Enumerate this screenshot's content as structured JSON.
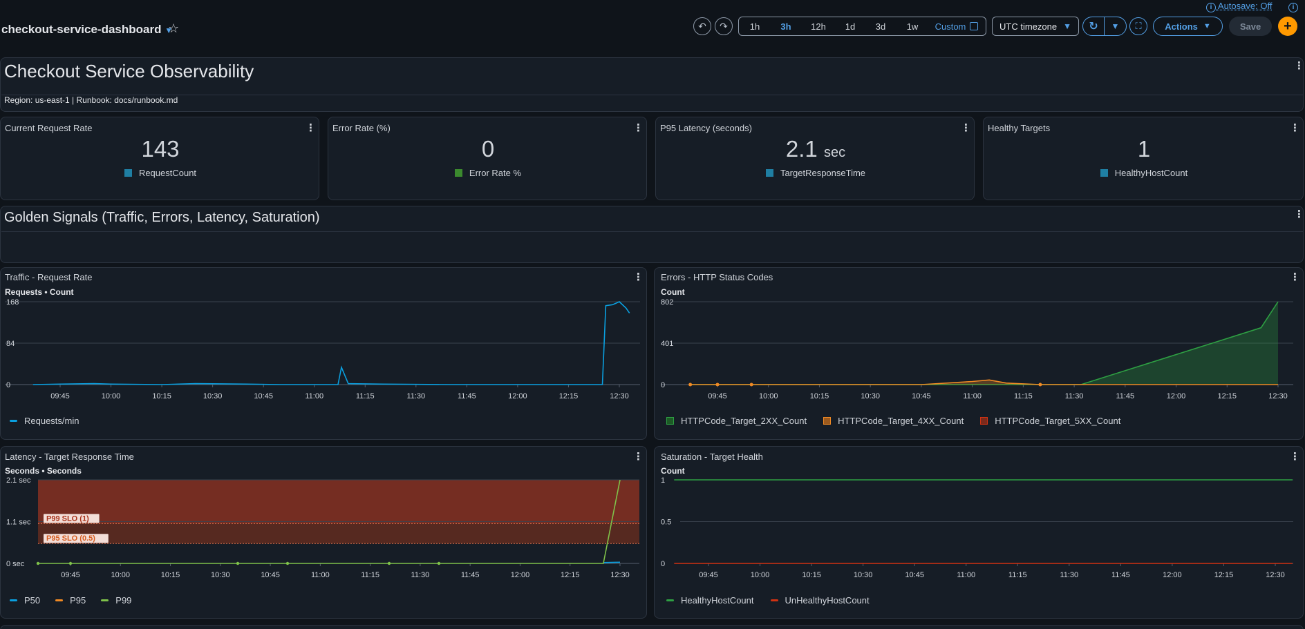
{
  "header": {
    "dashboard_name": "checkout-service-dashboard",
    "autosave": "Autosave: Off",
    "ranges": [
      "1h",
      "3h",
      "12h",
      "1d",
      "3d",
      "1w"
    ],
    "active_range": "3h",
    "custom_label": "Custom",
    "timezone": "UTC timezone",
    "actions_label": "Actions",
    "save_label": "Save"
  },
  "text_widget": {
    "title": "Checkout Service Observability",
    "subtitle": "Region: us-east-1 | Runbook: docs/runbook.md"
  },
  "stats": [
    {
      "title": "Current Request Rate",
      "value": "143",
      "unit": "",
      "legend": "RequestCount",
      "color": "#1f7fa3"
    },
    {
      "title": "Error Rate (%)",
      "value": "0",
      "unit": "",
      "legend": "Error Rate %",
      "color": "#3b8a2e"
    },
    {
      "title": "P95 Latency (seconds)",
      "value": "2.1",
      "unit": "sec",
      "legend": "TargetResponseTime",
      "color": "#1f7fa3"
    },
    {
      "title": "Healthy Targets",
      "value": "1",
      "unit": "",
      "legend": "HealthyHostCount",
      "color": "#1f7fa3"
    }
  ],
  "section": {
    "title": "Golden Signals (Traffic, Errors, Latency, Saturation)"
  },
  "charts": {
    "traffic": {
      "title": "Traffic - Request Rate",
      "subtitle": "Requests • Count",
      "legend": [
        "Requests/min"
      ]
    },
    "errors": {
      "title": "Errors - HTTP Status Codes",
      "subtitle": "Count",
      "legend": [
        "HTTPCode_Target_2XX_Count",
        "HTTPCode_Target_4XX_Count",
        "HTTPCode_Target_5XX_Count"
      ]
    },
    "latency": {
      "title": "Latency - Target Response Time",
      "subtitle": "Seconds • Seconds",
      "legend": [
        "P50",
        "P95",
        "P99"
      ],
      "annotations": [
        "P99 SLO (1)",
        "P95 SLO (0.5)"
      ]
    },
    "saturation": {
      "title": "Saturation - Target Health",
      "subtitle": "Count",
      "legend": [
        "HealthyHostCount",
        "UnHealthyHostCount"
      ]
    }
  },
  "chart_data": [
    {
      "type": "line",
      "title": "Traffic - Request Rate",
      "ylabel": "Requests • Count",
      "x_ticks": [
        "09:45",
        "10:00",
        "10:15",
        "10:30",
        "10:45",
        "11:00",
        "11:15",
        "11:30",
        "11:45",
        "12:00",
        "12:15",
        "12:30"
      ],
      "y_ticks": [
        "0",
        "84",
        "168"
      ],
      "ylim": [
        0,
        168
      ],
      "series": [
        {
          "name": "Requests/min",
          "color": "#0aa0e0",
          "x": [
            "09:37",
            "09:45",
            "09:55",
            "10:00",
            "10:15",
            "10:25",
            "10:40",
            "10:50",
            "11:00",
            "11:07",
            "11:08",
            "11:10",
            "11:20",
            "11:40",
            "12:00",
            "12:20",
            "12:25",
            "12:26",
            "12:28",
            "12:30",
            "12:32",
            "12:33"
          ],
          "values": [
            0,
            1,
            2,
            1,
            0,
            2,
            1,
            0,
            0,
            0,
            35,
            2,
            1,
            0,
            0,
            0,
            0,
            160,
            162,
            168,
            155,
            145
          ]
        }
      ]
    },
    {
      "type": "area",
      "title": "Errors - HTTP Status Codes",
      "ylabel": "Count",
      "x_ticks": [
        "09:45",
        "10:00",
        "10:15",
        "10:30",
        "10:45",
        "11:00",
        "11:15",
        "11:30",
        "11:45",
        "12:00",
        "12:15",
        "12:30"
      ],
      "y_ticks": [
        "0",
        "401",
        "802"
      ],
      "ylim": [
        0,
        802
      ],
      "series": [
        {
          "name": "HTTPCode_Target_2XX_Count",
          "color": "#2ea043",
          "x": [
            "09:37",
            "11:32",
            "12:25",
            "12:30"
          ],
          "values": [
            0,
            0,
            550,
            802
          ]
        },
        {
          "name": "HTTPCode_Target_4XX_Count",
          "color": "#f08a24",
          "x": [
            "09:37",
            "09:45",
            "09:55",
            "10:45",
            "11:00",
            "11:05",
            "11:10",
            "11:20",
            "12:30"
          ],
          "values": [
            0,
            0,
            0,
            0,
            30,
            45,
            15,
            0,
            0
          ]
        },
        {
          "name": "HTTPCode_Target_5XX_Count",
          "color": "#d13212",
          "x": [],
          "values": []
        }
      ]
    },
    {
      "type": "line",
      "title": "Latency - Target Response Time",
      "ylabel": "Seconds • Seconds",
      "x_ticks": [
        "09:45",
        "10:00",
        "10:15",
        "10:30",
        "10:45",
        "11:00",
        "11:15",
        "11:30",
        "11:45",
        "12:00",
        "12:15",
        "12:30"
      ],
      "y_ticks": [
        "0 sec",
        "1.1 sec",
        "2.1 sec"
      ],
      "ylim": [
        0,
        2.1
      ],
      "thresholds": [
        {
          "label": "P99 SLO (1)",
          "value": 1
        },
        {
          "label": "P95 SLO (0.5)",
          "value": 0.5
        }
      ],
      "series": [
        {
          "name": "P50",
          "color": "#0aa0e0",
          "x": [
            "12:25",
            "12:30"
          ],
          "values": [
            0.02,
            0.03
          ]
        },
        {
          "name": "P95",
          "color": "#f08a24",
          "x": [],
          "values": []
        },
        {
          "name": "P99",
          "color": "#7fc24a",
          "x": [
            "09:35",
            "12:25",
            "12:30"
          ],
          "values": [
            0,
            0,
            2.1
          ]
        }
      ]
    },
    {
      "type": "line",
      "title": "Saturation - Target Health",
      "ylabel": "Count",
      "x_ticks": [
        "09:45",
        "10:00",
        "10:15",
        "10:30",
        "10:45",
        "11:00",
        "11:15",
        "11:30",
        "11:45",
        "12:00",
        "12:15",
        "12:30"
      ],
      "y_ticks": [
        "0",
        "0.5",
        "1"
      ],
      "ylim": [
        0,
        1
      ],
      "series": [
        {
          "name": "HealthyHostCount",
          "color": "#2ea043",
          "x": [
            "09:35",
            "12:35"
          ],
          "values": [
            1,
            1
          ]
        },
        {
          "name": "UnHealthyHostCount",
          "color": "#d13212",
          "x": [
            "09:35",
            "12:35"
          ],
          "values": [
            0,
            0
          ]
        }
      ]
    }
  ]
}
